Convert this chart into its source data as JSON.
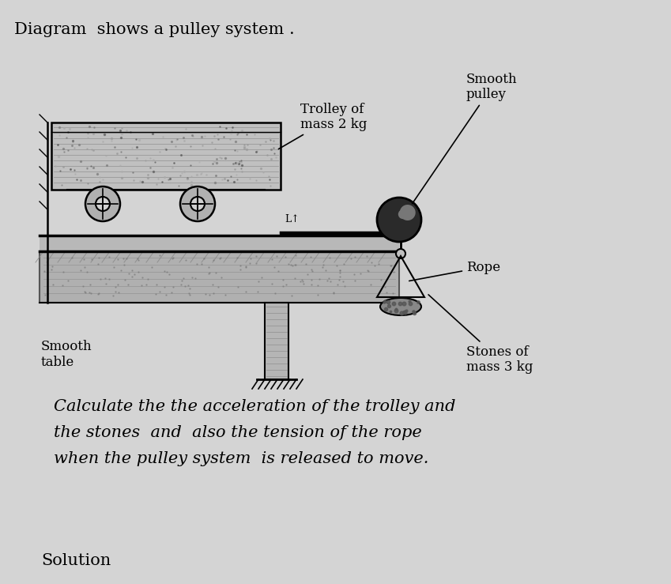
{
  "bg_color": "#d4d4d4",
  "title_text": "Diagram  shows a pulley system .",
  "title_fontsize": 15,
  "question_lines": [
    "Calculate the the acceleration of the trolley and",
    "the stones  and  also the tension of the rope",
    "when the pulley system  is released to move."
  ],
  "question_fontsize": 15,
  "solution_text": "Solution",
  "solution_fontsize": 15,
  "trolley_label": "Trolley of\nmass 2 kg",
  "smooth_pulley_label": "Smooth\npulley",
  "rope_label": "Rope",
  "stones_label": "Stones of\nmass 3 kg",
  "smooth_table_label": "Smooth\ntable"
}
